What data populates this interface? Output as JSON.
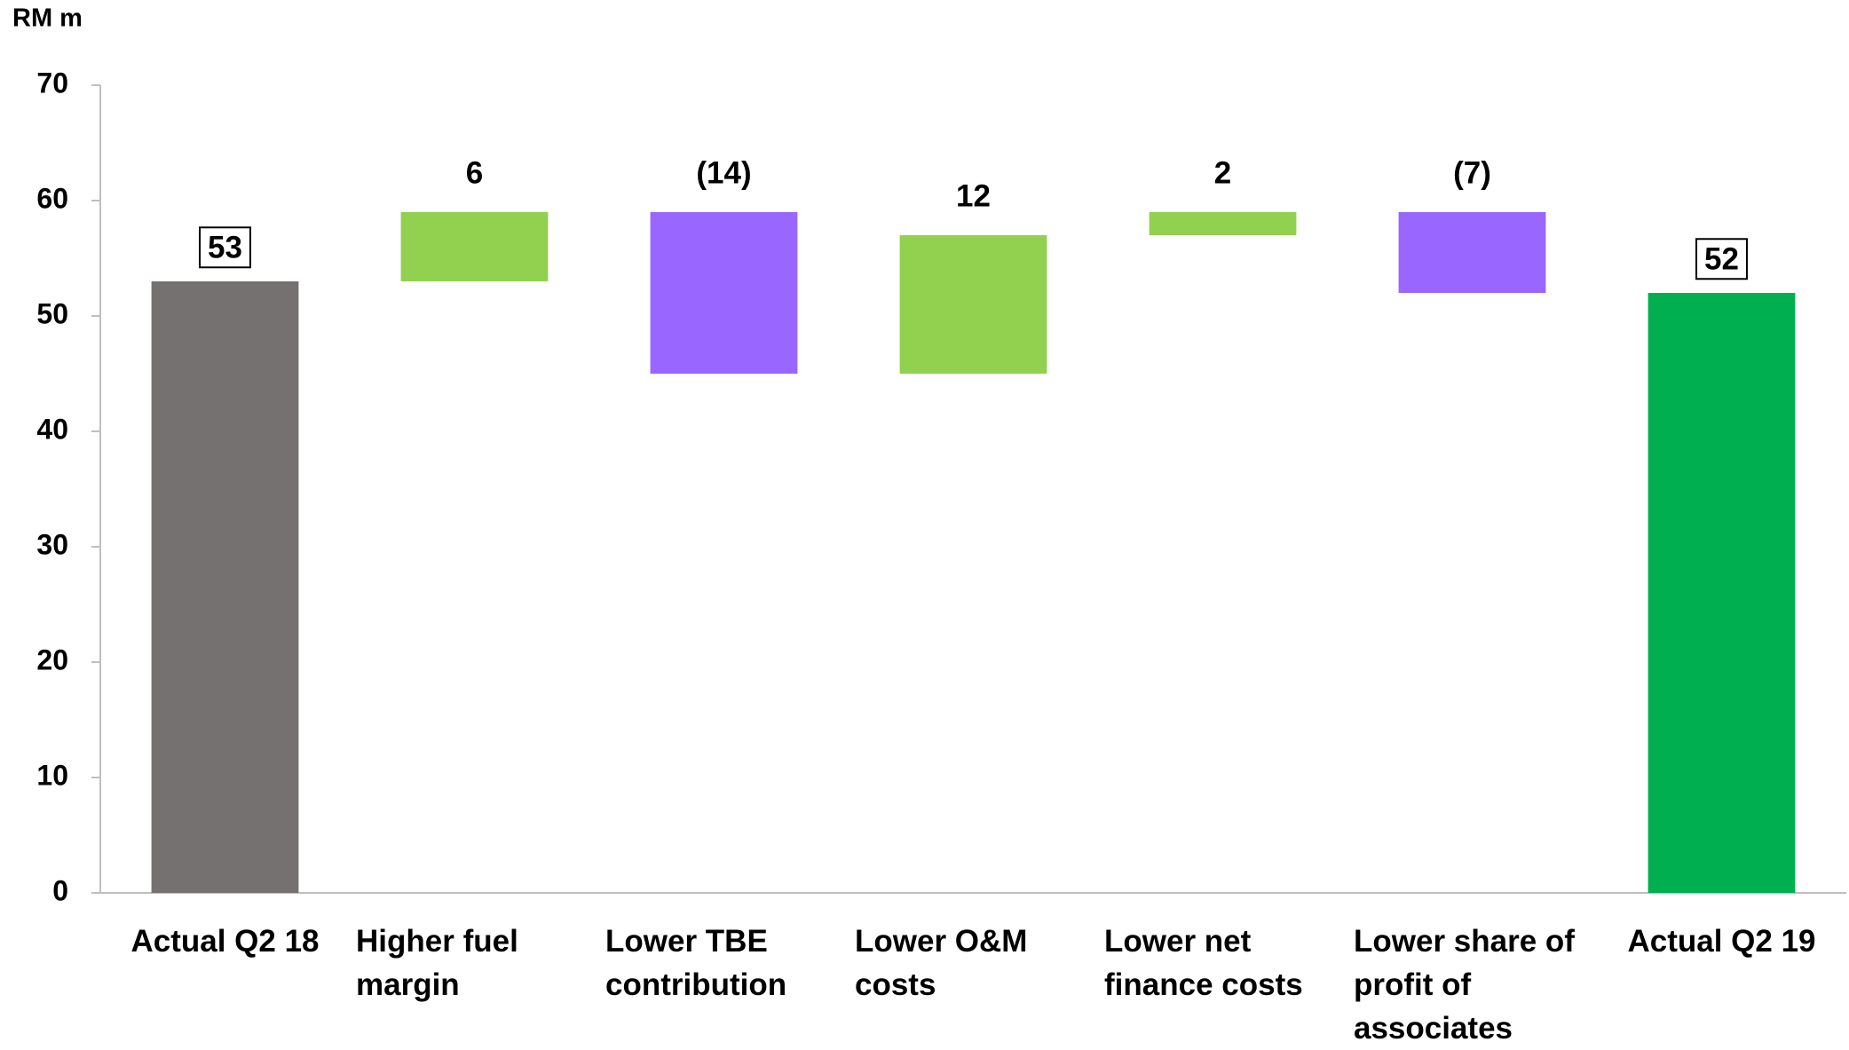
{
  "chart_data": {
    "type": "waterfall",
    "y_unit_label": "RM m",
    "categories": [
      "Actual Q2 18",
      "Higher fuel margin",
      "Lower TBE contribution",
      "Lower O&M costs",
      "Lower net finance costs",
      "Lower share of profit of associates",
      "Actual Q2 19"
    ],
    "values": [
      53,
      6,
      -14,
      12,
      2,
      -7,
      52
    ],
    "value_labels": [
      "53",
      "6",
      "(14)",
      "12",
      "2",
      "(7)",
      "52"
    ],
    "colors": [
      "#767171",
      "#92d050",
      "#9966ff",
      "#92d050",
      "#92d050",
      "#9966ff",
      "#00b050"
    ],
    "ylim": [
      0,
      70
    ],
    "yticks": [
      0,
      10,
      20,
      30,
      40,
      50,
      60,
      70
    ],
    "grid": false
  }
}
